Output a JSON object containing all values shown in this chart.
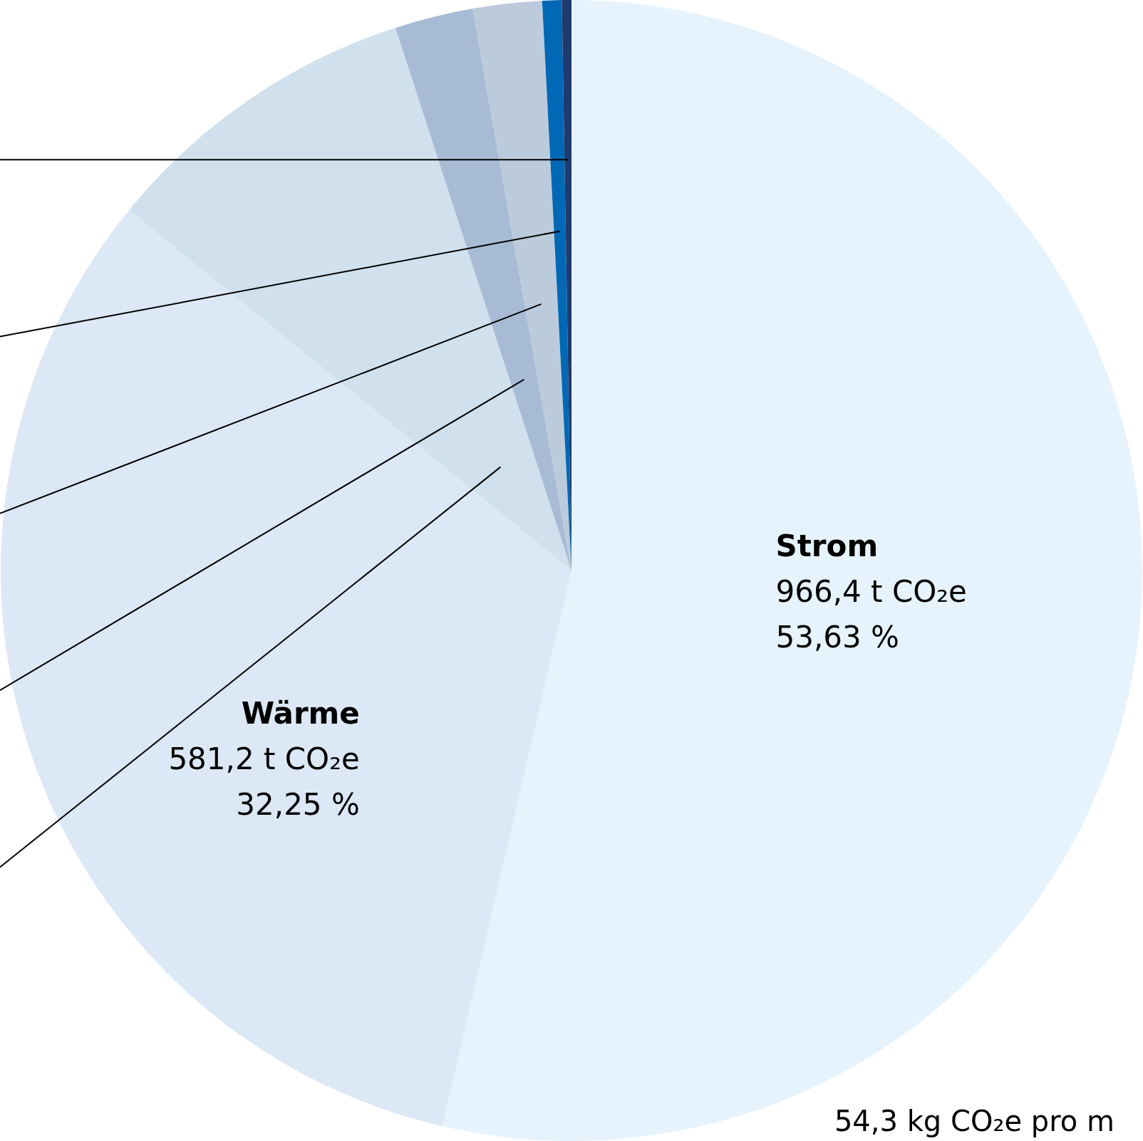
{
  "chart_data": {
    "type": "pie",
    "categories": [
      "Strom",
      "Wärme",
      null,
      null,
      null,
      null,
      null
    ],
    "values": [
      53.63,
      32.25,
      9.13,
      2.22,
      1.95,
      0.55,
      0.27
    ],
    "colors": [
      "#e6f3fc",
      "#dce8f5",
      "#d0e1ed",
      "#a7bbd4",
      "#bccbdb",
      "#0068b4",
      "#1e3a6e"
    ],
    "value_labels": [
      "966,4 t CO₂e\n53,63 %",
      "581,2 t CO₂e\n32,25 %",
      null,
      null,
      null,
      null,
      null
    ],
    "annotations": [
      "54,3 kg CO₂e pro m"
    ],
    "legend": false
  }
}
